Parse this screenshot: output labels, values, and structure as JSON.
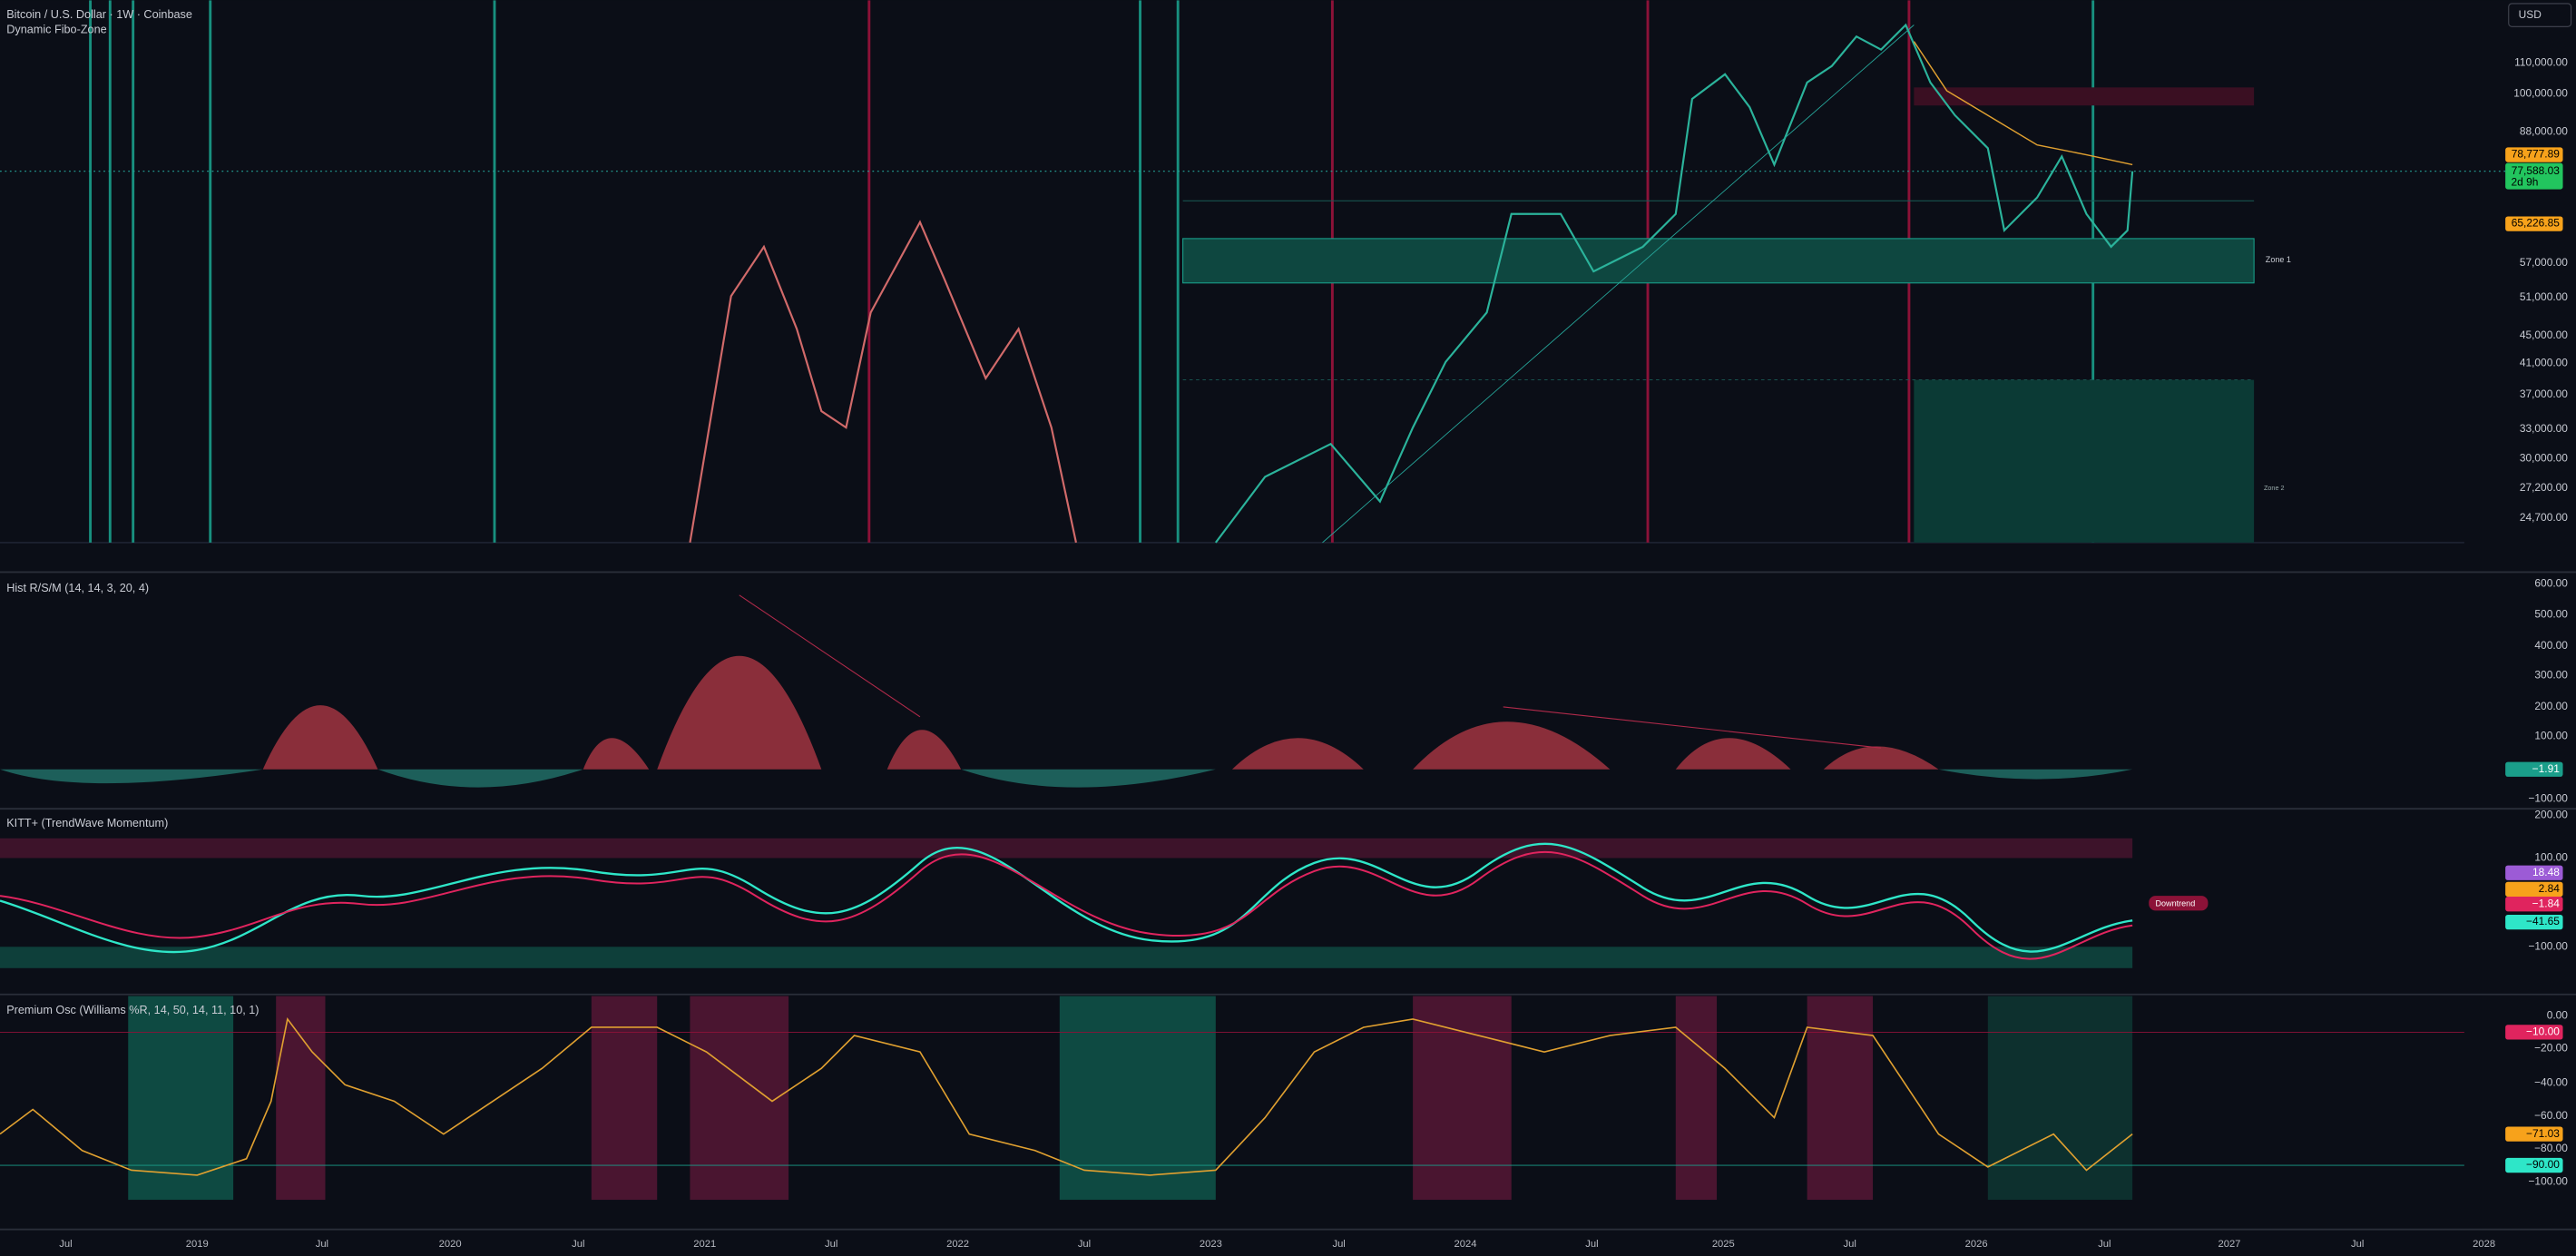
{
  "header": {
    "title": "Bitcoin / U.S. Dollar · 1W · Coinbase",
    "indicator": "Dynamic Fibo-Zone",
    "currency": "USD"
  },
  "price_axis": {
    "labels": [
      "110,000.00",
      "100,000.00",
      "88,000.00",
      "57,000.00",
      "51,000.00",
      "45,000.00",
      "41,000.00",
      "37,000.00",
      "33,000.00",
      "30,000.00",
      "27,200.00",
      "24,700.00"
    ],
    "badges": [
      "78,777.89",
      "77,588.03",
      "2d 9h",
      "65,226.85"
    ],
    "zones": [
      "Zone 1",
      "Zone 2"
    ]
  },
  "hist_pane": {
    "title": "Hist R/S/M (14, 14, 3, 20, 4)",
    "labels": [
      "600.00",
      "500.00",
      "400.00",
      "300.00",
      "200.00",
      "100.00",
      "−100.00"
    ],
    "badge": "−1.91"
  },
  "kitt_pane": {
    "title": "KITT+ (TrendWave Momentum)",
    "labels": [
      "200.00",
      "100.00",
      "−100.00"
    ],
    "badges": [
      "18.48",
      "2.84",
      "−1.84",
      "−41.65"
    ],
    "tag": "Downtrend"
  },
  "osc_pane": {
    "title": "Premium Osc (Williams %R, 14, 50, 14, 11, 10, 1)",
    "labels": [
      "0.00",
      "−20.00",
      "−40.00",
      "−60.00",
      "−80.00",
      "−100.00"
    ],
    "badges": [
      "−10.00",
      "−71.03",
      "−90.00"
    ]
  },
  "time_axis": [
    "Jul",
    "2019",
    "Jul",
    "2020",
    "Jul",
    "2021",
    "Jul",
    "2022",
    "Jul",
    "2023",
    "Jul",
    "2024",
    "Jul",
    "2025",
    "Jul",
    "2026",
    "Jul",
    "2027",
    "Jul",
    "2028"
  ]
}
